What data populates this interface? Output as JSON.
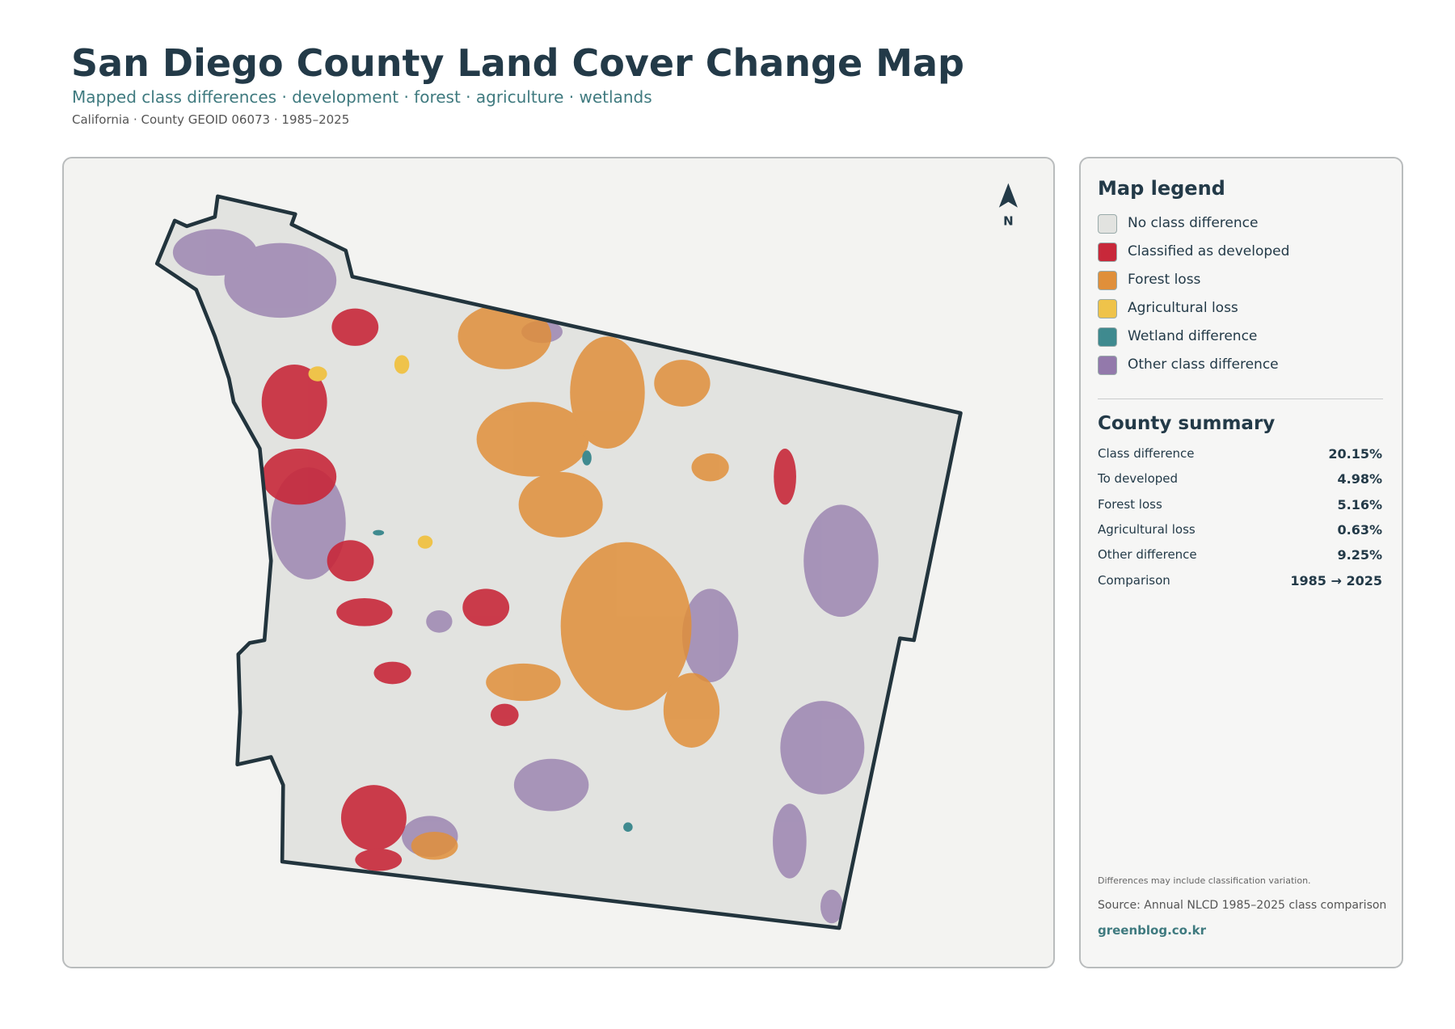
{
  "header": {
    "title": "San Diego County Land Cover Change Map",
    "subtitle": "Mapped class differences · development · forest · agriculture · wetlands",
    "meta": "California · County GEOID 06073 · 1985–2025"
  },
  "map": {
    "north_label": "N"
  },
  "legend": {
    "title": "Map legend",
    "items": [
      {
        "label": "No class difference",
        "color": "#e2e3e0"
      },
      {
        "label": "Classified as developed",
        "color": "#c8283a"
      },
      {
        "label": "Forest loss",
        "color": "#e08f3a"
      },
      {
        "label": "Agricultural loss",
        "color": "#efc34a"
      },
      {
        "label": "Wetland difference",
        "color": "#3f8a8f"
      },
      {
        "label": "Other class difference",
        "color": "#9379ab"
      }
    ]
  },
  "summary": {
    "title": "County summary",
    "rows": [
      {
        "label": "Class difference",
        "value": "20.15%"
      },
      {
        "label": "To developed",
        "value": "4.98%"
      },
      {
        "label": "Forest loss",
        "value": "5.16%"
      },
      {
        "label": "Agricultural loss",
        "value": "0.63%"
      },
      {
        "label": "Other difference",
        "value": "9.25%"
      },
      {
        "label": "Comparison",
        "value": "1985 → 2025"
      }
    ]
  },
  "notes": {
    "caveat": "Differences may include classification variation.",
    "source": "Source: Annual NLCD 1985–2025 class comparison",
    "site": "greenblog.co.kr"
  }
}
